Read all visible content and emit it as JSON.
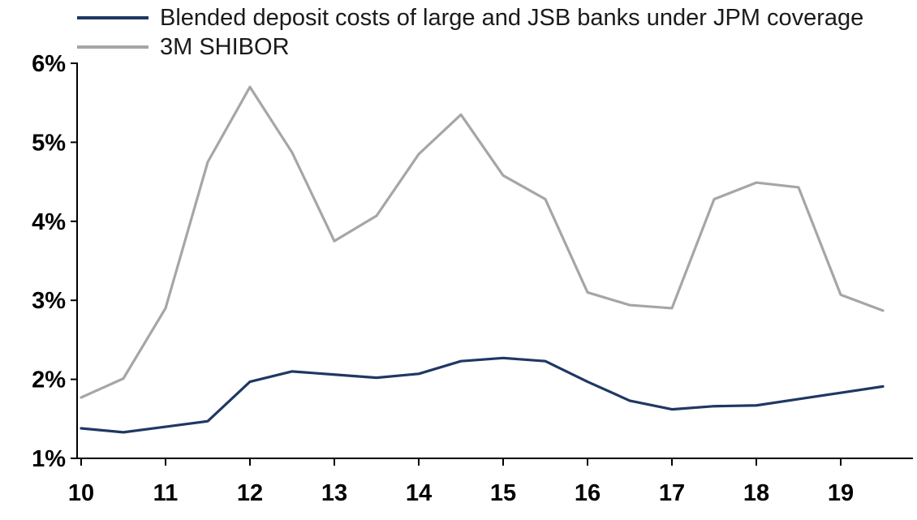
{
  "chart_data": {
    "type": "line",
    "title": "",
    "xlabel": "",
    "ylabel": "",
    "grid": false,
    "legend_position": "top-left",
    "xlim": [
      10,
      19.75
    ],
    "ylim": [
      1,
      6
    ],
    "x": [
      10,
      10.5,
      11,
      11.5,
      12,
      12.5,
      13,
      13.5,
      14,
      14.5,
      15,
      15.5,
      16,
      16.5,
      17,
      17.5,
      18,
      18.5,
      19,
      19.5
    ],
    "series": [
      {
        "name": "Blended deposit costs of large and JSB banks under JPM coverage",
        "color": "#1f3864",
        "values": [
          1.38,
          1.33,
          1.4,
          1.47,
          1.97,
          2.1,
          2.06,
          2.02,
          2.07,
          2.23,
          2.27,
          2.23,
          1.97,
          1.73,
          1.62,
          1.66,
          1.67,
          1.75,
          1.83,
          1.91
        ]
      },
      {
        "name": "3M SHIBOR",
        "color": "#a6a6a6",
        "values": [
          1.77,
          2.01,
          2.9,
          4.75,
          5.7,
          4.87,
          3.75,
          4.07,
          4.85,
          5.35,
          4.58,
          4.28,
          3.1,
          2.94,
          2.9,
          4.28,
          4.49,
          4.43,
          3.07,
          2.87
        ]
      }
    ],
    "y_ticks": [
      {
        "v": 1,
        "label": "1%"
      },
      {
        "v": 2,
        "label": "2%"
      },
      {
        "v": 3,
        "label": "3%"
      },
      {
        "v": 4,
        "label": "4%"
      },
      {
        "v": 5,
        "label": "5%"
      },
      {
        "v": 6,
        "label": "6%"
      }
    ],
    "x_ticks": [
      {
        "v": 10,
        "label": "10"
      },
      {
        "v": 11,
        "label": "11"
      },
      {
        "v": 12,
        "label": "12"
      },
      {
        "v": 13,
        "label": "13"
      },
      {
        "v": 14,
        "label": "14"
      },
      {
        "v": 15,
        "label": "15"
      },
      {
        "v": 16,
        "label": "16"
      },
      {
        "v": 17,
        "label": "17"
      },
      {
        "v": 18,
        "label": "18"
      },
      {
        "v": 19,
        "label": "19"
      }
    ]
  }
}
